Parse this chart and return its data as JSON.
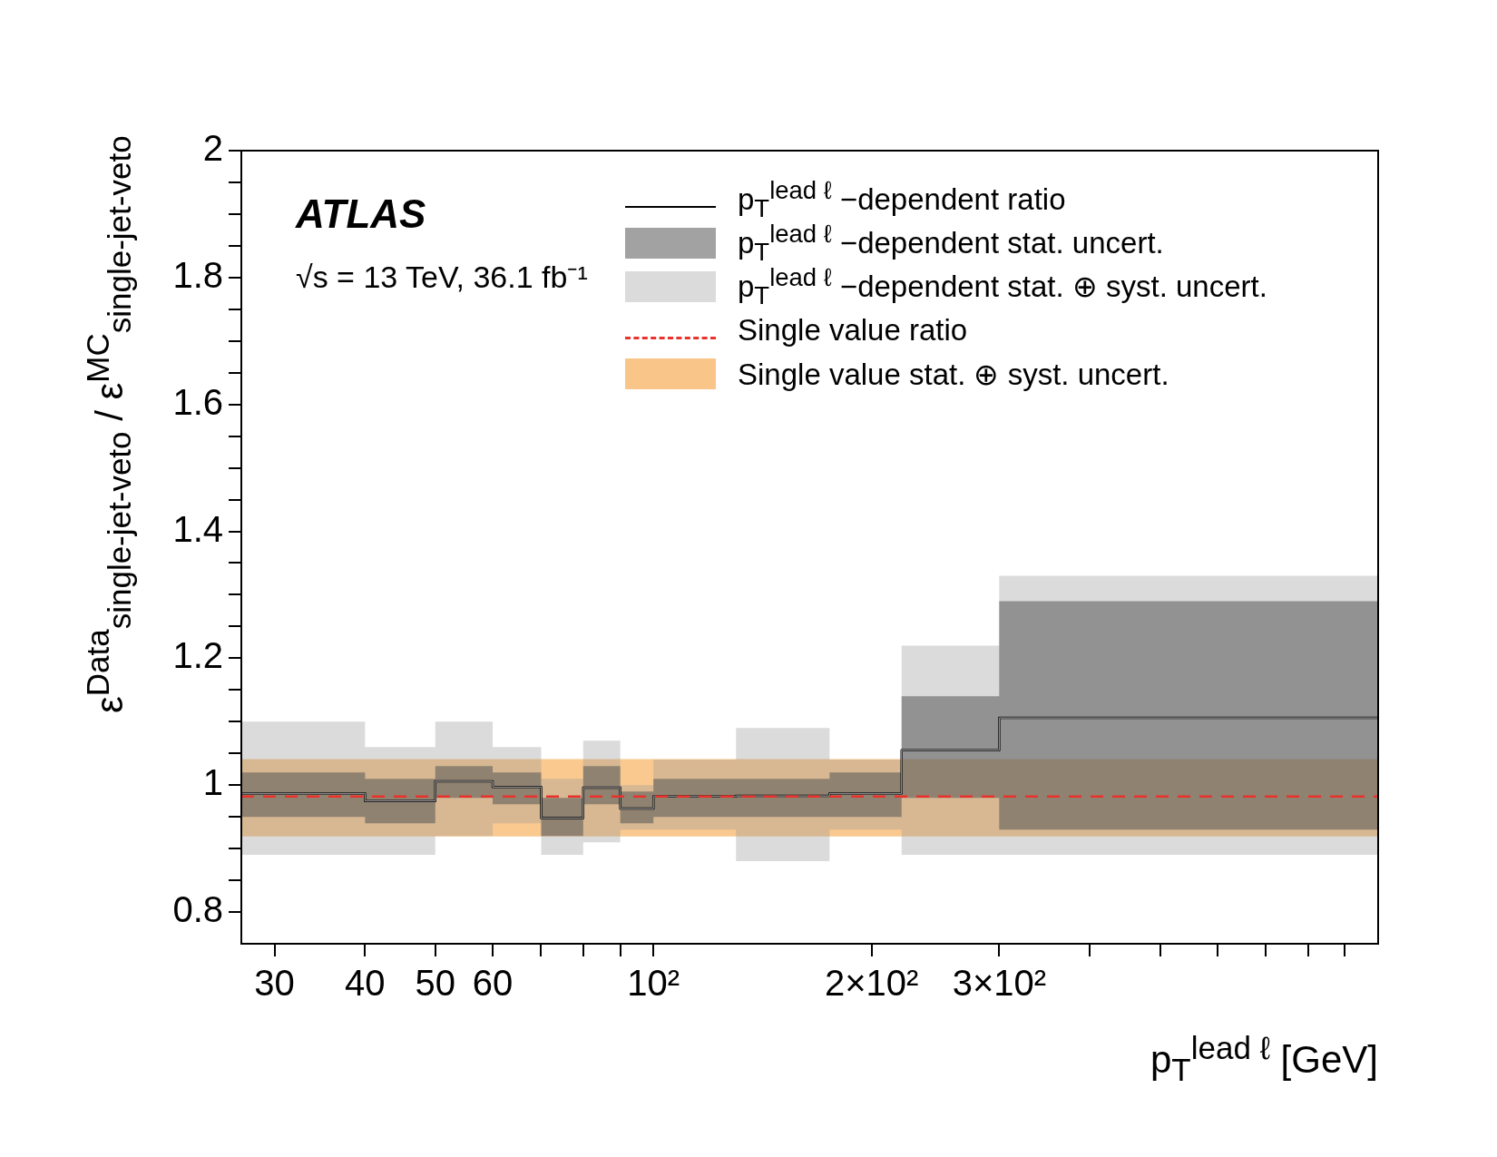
{
  "chart_data": {
    "type": "step",
    "xlabel": "p$_{T}$$^{lead ℓ}$ [GeV]",
    "ylabel": "ε$^{Data}$$_{single-jet-veto}$ / ε$^{MC}$$_{single-jet-veto}$",
    "annotations": [
      "ATLAS",
      "√s = 13 TeV, 36.1 fb⁻¹"
    ],
    "log": "x",
    "grid": false,
    "legend": "top right",
    "line_style": "solid",
    "marker": "none",
    "xlim": [
      27,
      1000
    ],
    "ylim": [
      0.75,
      2
    ],
    "xticks": [
      30,
      40,
      50,
      60,
      {
        "value": 70,
        "label": null
      },
      {
        "value": 80,
        "label": null
      },
      {
        "value": 90,
        "label": null
      },
      {
        "value": 100,
        "label": "10²"
      },
      {
        "value": 200,
        "label": "2×10²"
      },
      {
        "value": 300,
        "label": "3×10²"
      },
      {
        "value": 400,
        "label": null
      },
      {
        "value": 500,
        "label": null
      },
      {
        "value": 600,
        "label": null
      },
      {
        "value": 700,
        "label": null
      },
      {
        "value": 800,
        "label": null
      },
      {
        "value": 900,
        "label": null
      }
    ],
    "yticks": [
      0.8,
      {
        "value": 0.85,
        "label": null
      },
      {
        "value": 0.9,
        "label": null
      },
      {
        "value": 0.95,
        "label": null
      },
      1,
      {
        "value": 1.05,
        "label": null
      },
      {
        "value": 1.1,
        "label": null
      },
      {
        "value": 1.15,
        "label": null
      },
      1.2,
      {
        "value": 1.25,
        "label": null
      },
      {
        "value": 1.3,
        "label": null
      },
      {
        "value": 1.35,
        "label": null
      },
      1.4,
      {
        "value": 1.45,
        "label": null
      },
      {
        "value": 1.5,
        "label": null
      },
      {
        "value": 1.55,
        "label": null
      },
      1.6,
      {
        "value": 1.65,
        "label": null
      },
      {
        "value": 1.7,
        "label": null
      },
      {
        "value": 1.75,
        "label": null
      },
      1.8,
      {
        "value": 1.85,
        "label": null
      },
      {
        "value": 1.9,
        "label": null
      },
      {
        "value": 1.95,
        "label": null
      },
      2
    ],
    "series": [
      {
        "name": "p$_{T}$$^{lead ℓ}$ −dependent ratio",
        "type": "step",
        "color": "#000000",
        "x": [
          27,
          40,
          50,
          60,
          70,
          80,
          90,
          100,
          130,
          175,
          220,
          300,
          1000
        ],
        "values": [
          0.987,
          0.975,
          1.006,
          0.997,
          0.948,
          0.996,
          0.963,
          0.982,
          0.983,
          0.987,
          1.055,
          1.106,
          1.106
        ]
      },
      {
        "name": "p$_{T}$$^{lead ℓ}$ −dependent stat. uncert.",
        "type": "step",
        "color": "#555555",
        "x": [
          27,
          40,
          50,
          60,
          70,
          80,
          90,
          100,
          130,
          175,
          220,
          300,
          1000
        ],
        "values": [
          0.987,
          0.975,
          1.006,
          0.997,
          0.948,
          0.996,
          0.963,
          0.982,
          0.983,
          0.987,
          1.055,
          1.106,
          1.106
        ],
        "lower": [
          0.95,
          0.94,
          0.98,
          0.97,
          0.92,
          0.97,
          0.94,
          0.95,
          0.95,
          0.95,
          0.98,
          0.93,
          0.93
        ],
        "upper": [
          1.02,
          1.01,
          1.03,
          1.02,
          0.98,
          1.03,
          0.99,
          1.01,
          1.01,
          1.02,
          1.14,
          1.29,
          1.29
        ]
      },
      {
        "name": "p$_{T}$$^{lead ℓ}$ −dependent stat. ⊕ syst. uncert.",
        "type": "step",
        "color": "#999999",
        "x": [
          27,
          40,
          50,
          60,
          70,
          80,
          90,
          100,
          130,
          175,
          220,
          300,
          1000
        ],
        "values": [
          0.987,
          0.975,
          1.006,
          0.997,
          0.948,
          0.996,
          0.963,
          0.982,
          0.983,
          0.987,
          1.055,
          1.106,
          1.106
        ],
        "lower": [
          0.89,
          0.89,
          0.92,
          0.94,
          0.89,
          0.91,
          0.93,
          0.93,
          0.88,
          0.93,
          0.89,
          0.89,
          0.89
        ],
        "upper": [
          1.1,
          1.06,
          1.1,
          1.06,
          1.01,
          1.07,
          1.0,
          1.04,
          1.09,
          1.04,
          1.22,
          1.33,
          1.33
        ]
      }
    ],
    "ref_lines": [
      {
        "axis": "y",
        "value": 0.982,
        "label": "Single value ratio",
        "color": "#e8322b",
        "line_style": "dashed"
      }
    ],
    "bands": [
      {
        "axis": "y",
        "from": 0.919,
        "to": 1.041,
        "label": "Single value stat. ⊕ syst. uncert.",
        "color": "#f7b76a"
      }
    ]
  }
}
